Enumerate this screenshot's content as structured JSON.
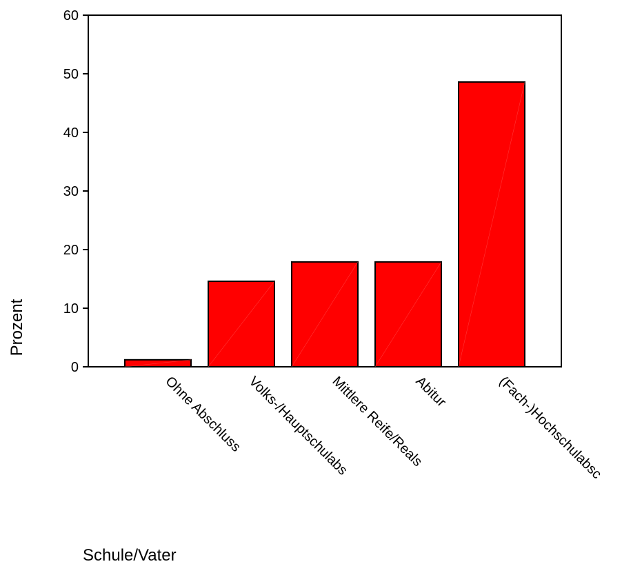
{
  "chart_data": {
    "type": "bar",
    "categories": [
      "Ohne Abschluss",
      "Volks-/Hauptschulabs",
      "Mittlere Reife/Reals",
      "Abitur",
      "(Fach-)Hochschulabsc"
    ],
    "values": [
      1.2,
      14.6,
      17.9,
      17.9,
      48.6
    ],
    "title": "",
    "xlabel": "Schule/Vater",
    "ylabel": "Prozent",
    "ylim": [
      0,
      60
    ],
    "yticks": [
      0,
      10,
      20,
      30,
      40,
      50,
      60
    ],
    "grid": false,
    "bar_color": "#ff0000",
    "bar_edge_color": "#000000"
  }
}
